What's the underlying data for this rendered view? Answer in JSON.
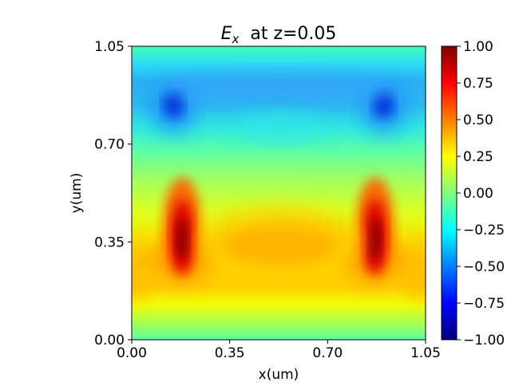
{
  "chart_data": {
    "type": "heatmap",
    "title_symbol": "E",
    "title_subscript": "x",
    "title_suffix": "  at z=0.05",
    "xlabel": "x(um)",
    "ylabel": "y(um)",
    "xlim": [
      0.0,
      1.05
    ],
    "ylim": [
      0.0,
      1.05
    ],
    "xticks": [
      "0.00",
      "0.35",
      "0.70",
      "1.05"
    ],
    "yticks": [
      "0.00",
      "0.35",
      "0.70",
      "1.05"
    ],
    "colorbar": {
      "range": [
        -1.0,
        1.0
      ],
      "ticks": [
        "1.00",
        "0.75",
        "0.50",
        "0.25",
        "0.00",
        "−0.25",
        "−0.50",
        "−0.75",
        "−1.00"
      ],
      "colormap": "jet"
    },
    "features": [
      {
        "kind": "positive-peak",
        "x": 0.18,
        "y": 0.37,
        "value": 0.95
      },
      {
        "kind": "positive-peak",
        "x": 0.87,
        "y": 0.37,
        "value": 0.95
      },
      {
        "kind": "negative-peak",
        "x": 0.15,
        "y": 0.83,
        "value": -0.55
      },
      {
        "kind": "negative-peak",
        "x": 0.9,
        "y": 0.83,
        "value": -0.55
      },
      {
        "kind": "positive-band",
        "x": 0.53,
        "y": 0.35,
        "value": 0.45
      },
      {
        "kind": "negative-band",
        "x": 0.53,
        "y": 0.93,
        "value": -0.35
      }
    ]
  }
}
